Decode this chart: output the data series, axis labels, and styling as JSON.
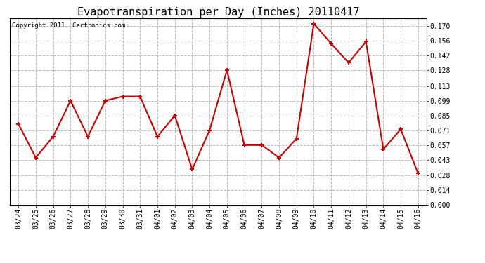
{
  "title": "Evapotranspiration per Day (Inches) 20110417",
  "copyright_text": "Copyright 2011  Cartronics.com",
  "dates": [
    "03/24",
    "03/25",
    "03/26",
    "03/27",
    "03/28",
    "03/29",
    "03/30",
    "03/31",
    "04/01",
    "04/02",
    "04/03",
    "04/04",
    "04/05",
    "04/06",
    "04/07",
    "04/08",
    "04/09",
    "04/10",
    "04/11",
    "04/12",
    "04/13",
    "04/14",
    "04/15",
    "04/16"
  ],
  "values": [
    0.077,
    0.045,
    0.065,
    0.099,
    0.065,
    0.099,
    0.103,
    0.103,
    0.065,
    0.085,
    0.034,
    0.071,
    0.128,
    0.057,
    0.057,
    0.045,
    0.063,
    0.172,
    0.153,
    0.135,
    0.155,
    0.053,
    0.072,
    0.03
  ],
  "line_color": "#cc0000",
  "marker": "+",
  "marker_size": 5,
  "marker_color": "#cc0000",
  "line_width": 1.5,
  "background_color": "#ffffff",
  "plot_bg_color": "#ffffff",
  "grid_color": "#bbbbbb",
  "grid_linestyle": "--",
  "yticks": [
    0.0,
    0.014,
    0.028,
    0.043,
    0.057,
    0.071,
    0.085,
    0.099,
    0.113,
    0.128,
    0.142,
    0.156,
    0.17
  ],
  "ylim": [
    0.0,
    0.177
  ],
  "title_fontsize": 11,
  "copyright_fontsize": 6.5,
  "tick_fontsize": 7,
  "fig_width": 6.9,
  "fig_height": 3.75,
  "dpi": 100
}
